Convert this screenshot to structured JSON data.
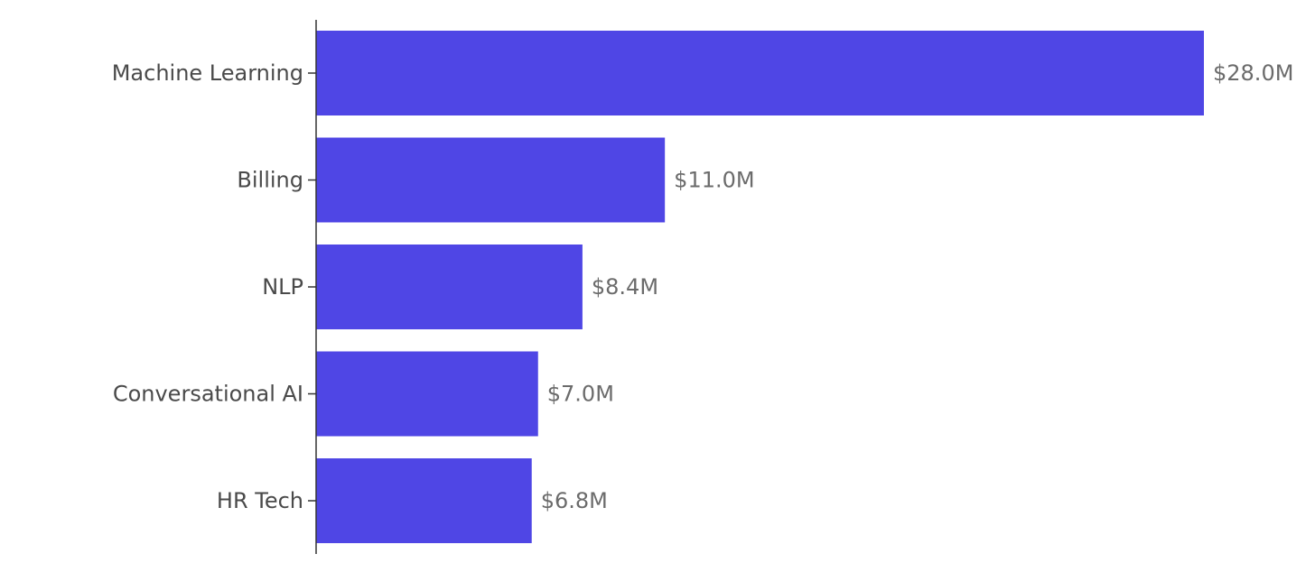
{
  "chart_data": {
    "type": "bar",
    "orientation": "horizontal",
    "categories": [
      "Machine Learning",
      "Billing",
      "NLP",
      "Conversational AI",
      "HR Tech"
    ],
    "values": [
      28.0,
      11.0,
      8.4,
      7.0,
      6.8
    ],
    "value_labels": [
      "$28.0M",
      "$11.0M",
      "$8.4M",
      "$7.0M",
      "$6.8M"
    ],
    "title": "",
    "xlabel": "",
    "ylabel": "",
    "xlim": [
      0,
      28.0
    ],
    "grid": false,
    "legend": "none",
    "bar_color": "#4f46e5"
  }
}
